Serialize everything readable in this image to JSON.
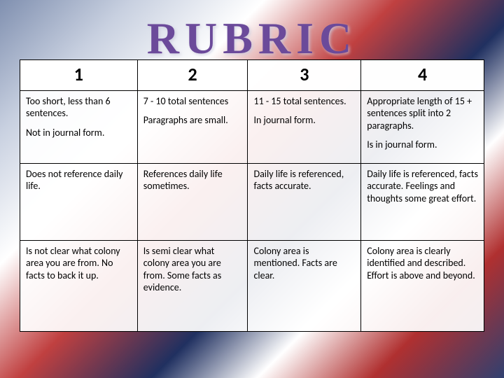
{
  "title": "RUBRIC",
  "colors": {
    "title_color": "#6b4a9a",
    "border_color": "#000000",
    "cell_bg": "rgba(255,255,255,0.92)"
  },
  "columns": [
    "1",
    "2",
    "3",
    "4"
  ],
  "rows": [
    {
      "c1a": "Too short, less than 6 sentences.",
      "c1b": "Not in journal form.",
      "c2a": "7 - 10 total sentences",
      "c2b": "Paragraphs are small.",
      "c3a": "11 - 15 total sentences.",
      "c3b": "In journal form.",
      "c4a": "Appropriate length of 15 + sentences split into 2 paragraphs.",
      "c4b": "Is in journal form."
    },
    {
      "c1": "Does not reference daily life.",
      "c2": "References daily life sometimes.",
      "c3": "Daily life is referenced, facts accurate.",
      "c4": "Daily life is referenced, facts accurate.  Feelings and thoughts some great effort."
    },
    {
      "c1": "Is not clear what colony area you are from. No facts to back it up.",
      "c2": "Is semi clear what colony area you are from. Some facts as evidence.",
      "c3": "Colony area is mentioned. Facts are clear.",
      "c4": "Colony area is clearly identified and described.  Effort is above and beyond."
    }
  ]
}
